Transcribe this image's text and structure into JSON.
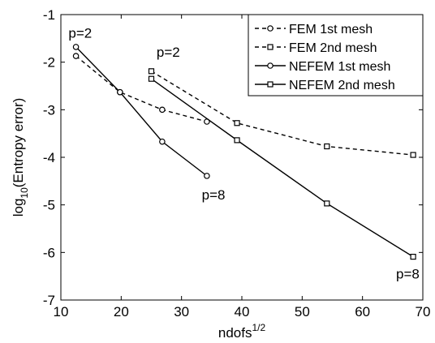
{
  "chart_data": {
    "type": "line",
    "xlabel_base": "ndofs",
    "xlabel_sup": "1/2",
    "ylabel_base": "log",
    "ylabel_sub": "10",
    "ylabel_rest": "(Entropy error)",
    "xlim": [
      10,
      70
    ],
    "ylim": [
      -7,
      -1
    ],
    "xticks": [
      10,
      20,
      30,
      40,
      50,
      60,
      70
    ],
    "yticks": [
      -7,
      -6,
      -5,
      -4,
      -3,
      -2,
      -1
    ],
    "grid": false,
    "legend_position": "top-right",
    "series": [
      {
        "name": "FEM 1st mesh",
        "style": "dashed",
        "marker": "circle",
        "x": [
          12.5,
          19.8,
          26.8,
          34.2
        ],
        "y": [
          -1.87,
          -2.63,
          -3.0,
          -3.25
        ]
      },
      {
        "name": "FEM 2nd mesh",
        "style": "dashed",
        "marker": "square",
        "x": [
          25.0,
          39.2,
          54.1,
          68.4
        ],
        "y": [
          -2.19,
          -3.28,
          -3.77,
          -3.95
        ]
      },
      {
        "name": "NEFEM 1st mesh",
        "style": "solid",
        "marker": "circle",
        "x": [
          12.5,
          19.8,
          26.8,
          34.2
        ],
        "y": [
          -1.68,
          -2.63,
          -3.67,
          -4.39
        ]
      },
      {
        "name": "NEFEM 2nd mesh",
        "style": "solid",
        "marker": "square",
        "x": [
          25.0,
          39.2,
          54.1,
          68.4
        ],
        "y": [
          -2.35,
          -3.64,
          -4.97,
          -6.09
        ]
      }
    ],
    "annotations": [
      {
        "text": "p=2",
        "x": 13.2,
        "y": -1.38
      },
      {
        "text": "p=2",
        "x": 27.8,
        "y": -1.78
      },
      {
        "text": "p=8",
        "x": 35.3,
        "y": -4.78
      },
      {
        "text": "p=8",
        "x": 67.5,
        "y": -6.45
      }
    ]
  }
}
